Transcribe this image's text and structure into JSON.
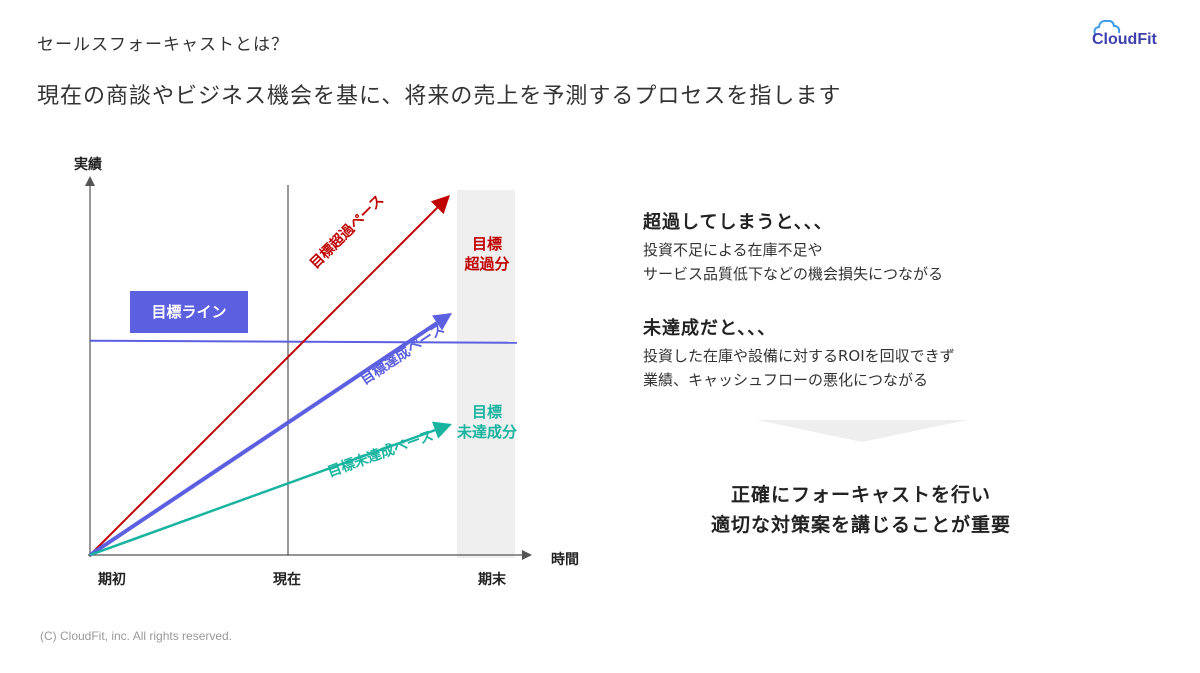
{
  "header": {
    "section_title": "セールスフォーキャストとは？",
    "headline": "現在の商談やビジネス機会を基に、将来の売上を予測するプロセスを指します"
  },
  "logo": {
    "text": "CloudFit"
  },
  "chart_data": {
    "type": "line",
    "ylabel": "実績",
    "xlabel": "時間",
    "x_ticks": [
      "期初",
      "現在",
      "期末"
    ],
    "target_line_label": "目標ライン",
    "series": [
      {
        "name": "目標超過ペース",
        "color": "#c00000",
        "end_value": 1.0
      },
      {
        "name": "目標達成ペース",
        "color": "#5b5fe0",
        "end_value": 0.65
      },
      {
        "name": "目標未達成ペース",
        "color": "#19b4a0",
        "end_value": 0.35
      }
    ],
    "target_value": 0.65,
    "band_labels": {
      "over": [
        "目標",
        "超過分"
      ],
      "under": [
        "目標",
        "未達成分"
      ]
    },
    "colors": {
      "target": "#5b5fe0",
      "band": "#efefef",
      "axis": "#555555"
    }
  },
  "points": [
    {
      "title": "超過してしまうと、、、",
      "lines": [
        "投資不足による在庫不足や",
        "サービス品質低下などの機会損失につながる"
      ]
    },
    {
      "title": "未達成だと、、、",
      "lines": [
        "投資した在庫や設備に対するROIを回収できず",
        "業績、キャッシュフローの悪化につながる"
      ]
    }
  ],
  "conclusion": [
    "正確にフォーキャストを行い",
    "適切な対策案を講じることが重要"
  ],
  "footer": "(C) CloudFit, inc. All rights reserved."
}
